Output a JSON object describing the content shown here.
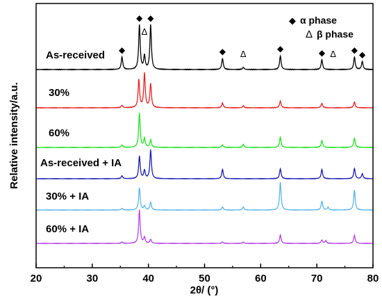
{
  "chart_data": {
    "type": "line",
    "xlabel": "2θ/ (°)",
    "ylabel": "Relative intensity/a.u.",
    "xlim": [
      20,
      80
    ],
    "xticks": [
      "20",
      "30",
      "40",
      "50",
      "60",
      "70",
      "80"
    ],
    "yticks": "none",
    "grid": false,
    "legend": {
      "placement": "top-right",
      "entries": [
        {
          "symbol": "◆",
          "text": "α  phase"
        },
        {
          "symbol": "Δ",
          "text": "β  phase"
        }
      ]
    },
    "phase_markers": [
      {
        "x": 35.3,
        "symbol": "◆",
        "phase": "alpha"
      },
      {
        "x": 38.4,
        "symbol": "◆",
        "phase": "alpha"
      },
      {
        "x": 39.3,
        "symbol": "Δ",
        "phase": "beta"
      },
      {
        "x": 40.4,
        "symbol": "◆",
        "phase": "alpha"
      },
      {
        "x": 53.2,
        "symbol": "◆",
        "phase": "alpha"
      },
      {
        "x": 56.9,
        "symbol": "Δ",
        "phase": "beta"
      },
      {
        "x": 63.5,
        "symbol": "◆",
        "phase": "alpha"
      },
      {
        "x": 70.9,
        "symbol": "◆",
        "phase": "alpha"
      },
      {
        "x": 72.9,
        "symbol": "Δ",
        "phase": "beta"
      },
      {
        "x": 76.7,
        "symbol": "◆",
        "phase": "alpha"
      },
      {
        "x": 78.1,
        "symbol": "◆",
        "phase": "alpha"
      }
    ],
    "series": [
      {
        "name": "As-received",
        "color": "#000000",
        "peaks": [
          {
            "x": 35.3,
            "h": 0.28
          },
          {
            "x": 38.4,
            "h": 1.0
          },
          {
            "x": 39.3,
            "h": 0.3
          },
          {
            "x": 40.4,
            "h": 1.0
          },
          {
            "x": 53.2,
            "h": 0.25
          },
          {
            "x": 56.9,
            "h": 0.05
          },
          {
            "x": 63.5,
            "h": 0.31
          },
          {
            "x": 70.9,
            "h": 0.22
          },
          {
            "x": 76.7,
            "h": 0.28
          },
          {
            "x": 78.1,
            "h": 0.18
          }
        ]
      },
      {
        "name": "30%",
        "color": "#e8201e",
        "peaks": [
          {
            "x": 35.3,
            "h": 0.07
          },
          {
            "x": 38.3,
            "h": 0.82
          },
          {
            "x": 39.3,
            "h": 1.0
          },
          {
            "x": 40.4,
            "h": 0.7
          },
          {
            "x": 53.2,
            "h": 0.14
          },
          {
            "x": 56.9,
            "h": 0.06
          },
          {
            "x": 63.5,
            "h": 0.2
          },
          {
            "x": 70.9,
            "h": 0.13
          },
          {
            "x": 76.7,
            "h": 0.17
          }
        ]
      },
      {
        "name": "60%",
        "color": "#22e122",
        "peaks": [
          {
            "x": 35.3,
            "h": 0.07
          },
          {
            "x": 38.4,
            "h": 1.0
          },
          {
            "x": 39.3,
            "h": 0.26
          },
          {
            "x": 40.4,
            "h": 0.22
          },
          {
            "x": 53.2,
            "h": 0.08
          },
          {
            "x": 56.9,
            "h": 0.09
          },
          {
            "x": 63.5,
            "h": 0.3
          },
          {
            "x": 70.9,
            "h": 0.2
          },
          {
            "x": 76.7,
            "h": 0.27
          }
        ]
      },
      {
        "name": "As-received + IA",
        "color": "#1d1db4",
        "peaks": [
          {
            "x": 35.3,
            "h": 0.09
          },
          {
            "x": 38.4,
            "h": 0.72
          },
          {
            "x": 39.3,
            "h": 0.26
          },
          {
            "x": 40.4,
            "h": 0.92
          },
          {
            "x": 53.2,
            "h": 0.3
          },
          {
            "x": 63.5,
            "h": 0.32
          },
          {
            "x": 70.9,
            "h": 0.3
          },
          {
            "x": 76.7,
            "h": 0.33
          },
          {
            "x": 78.1,
            "h": 0.16
          }
        ]
      },
      {
        "name": "30% + IA",
        "color": "#5ab4ea",
        "peaks": [
          {
            "x": 35.3,
            "h": 0.06
          },
          {
            "x": 38.4,
            "h": 0.8
          },
          {
            "x": 39.3,
            "h": 0.14
          },
          {
            "x": 40.4,
            "h": 0.28
          },
          {
            "x": 53.2,
            "h": 0.11
          },
          {
            "x": 56.9,
            "h": 0.11
          },
          {
            "x": 63.5,
            "h": 1.0
          },
          {
            "x": 70.9,
            "h": 0.32
          },
          {
            "x": 72.0,
            "h": 0.1
          },
          {
            "x": 76.7,
            "h": 0.72
          }
        ]
      },
      {
        "name": "60% + IA",
        "color": "#b445e6",
        "peaks": [
          {
            "x": 35.3,
            "h": 0.04
          },
          {
            "x": 38.4,
            "h": 1.0
          },
          {
            "x": 39.3,
            "h": 0.18
          },
          {
            "x": 40.4,
            "h": 0.12
          },
          {
            "x": 53.2,
            "h": 0.04
          },
          {
            "x": 56.9,
            "h": 0.04
          },
          {
            "x": 63.5,
            "h": 0.25
          },
          {
            "x": 70.9,
            "h": 0.1
          },
          {
            "x": 71.6,
            "h": 0.08
          },
          {
            "x": 76.7,
            "h": 0.24
          }
        ]
      }
    ]
  }
}
